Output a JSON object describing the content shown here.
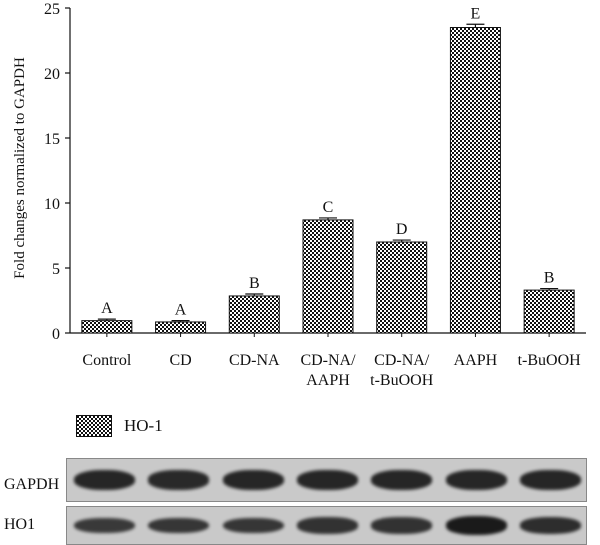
{
  "chart_data": {
    "type": "bar",
    "categories": [
      "Control",
      "CD",
      "CD-NA",
      "CD-NA/\nAAPH",
      "CD-NA/\nt-BuOOH",
      "AAPH",
      "t-BuOOH"
    ],
    "series": [
      {
        "name": "HO-1",
        "values": [
          0.95,
          0.85,
          2.85,
          8.7,
          7.0,
          23.5,
          3.3
        ],
        "errors": [
          0.12,
          0.1,
          0.15,
          0.15,
          0.15,
          0.25,
          0.12
        ]
      }
    ],
    "significance_letters": [
      "A",
      "A",
      "B",
      "C",
      "D",
      "E",
      "B"
    ],
    "ylabel": "Fold changes normalized to GAPDH",
    "ylim": [
      0,
      25
    ],
    "yticks": [
      0,
      5,
      10,
      15,
      20,
      25
    ],
    "grid": false,
    "legend_position": "bottom-left",
    "bar_pattern": "checkered black-white"
  },
  "blot": {
    "rows": [
      {
        "label": "GAPDH",
        "band_intensities": [
          0.85,
          0.8,
          0.85,
          0.85,
          0.85,
          0.85,
          0.85
        ]
      },
      {
        "label": "HO1",
        "band_intensities": [
          0.6,
          0.65,
          0.65,
          0.7,
          0.7,
          1.0,
          0.75
        ]
      }
    ],
    "band_color": "#1a1a1a"
  }
}
